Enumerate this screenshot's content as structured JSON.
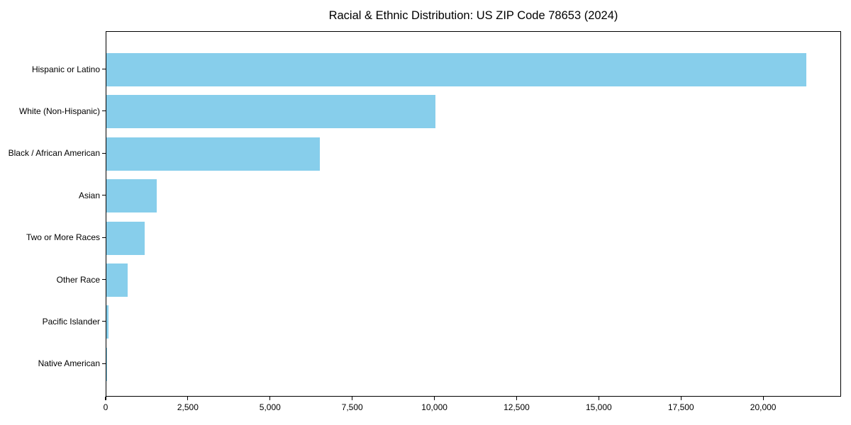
{
  "chart_data": {
    "type": "bar",
    "orientation": "horizontal",
    "title": "Racial & Ethnic Distribution: US ZIP Code 78653 (2024)",
    "categories": [
      "Hispanic or Latino",
      "White (Non-Hispanic)",
      "Black / African American",
      "Asian",
      "Two or More Races",
      "Other Race",
      "Pacific Islander",
      "Native American"
    ],
    "values": [
      21300,
      10000,
      6500,
      1540,
      1160,
      650,
      60,
      15
    ],
    "xlabel": "",
    "ylabel": "",
    "xlim": [
      0,
      22370
    ],
    "x_ticks": [
      0,
      2500,
      5000,
      7500,
      10000,
      12500,
      15000,
      17500,
      20000
    ],
    "x_tick_labels": [
      "0",
      "2,500",
      "5,000",
      "7,500",
      "10,000",
      "12,500",
      "15,000",
      "17,500",
      "20,000"
    ],
    "bar_color": "#87CEEB",
    "axis_color": "#000000",
    "background_color": "#FFFFFF",
    "grid": false,
    "legend": null
  }
}
